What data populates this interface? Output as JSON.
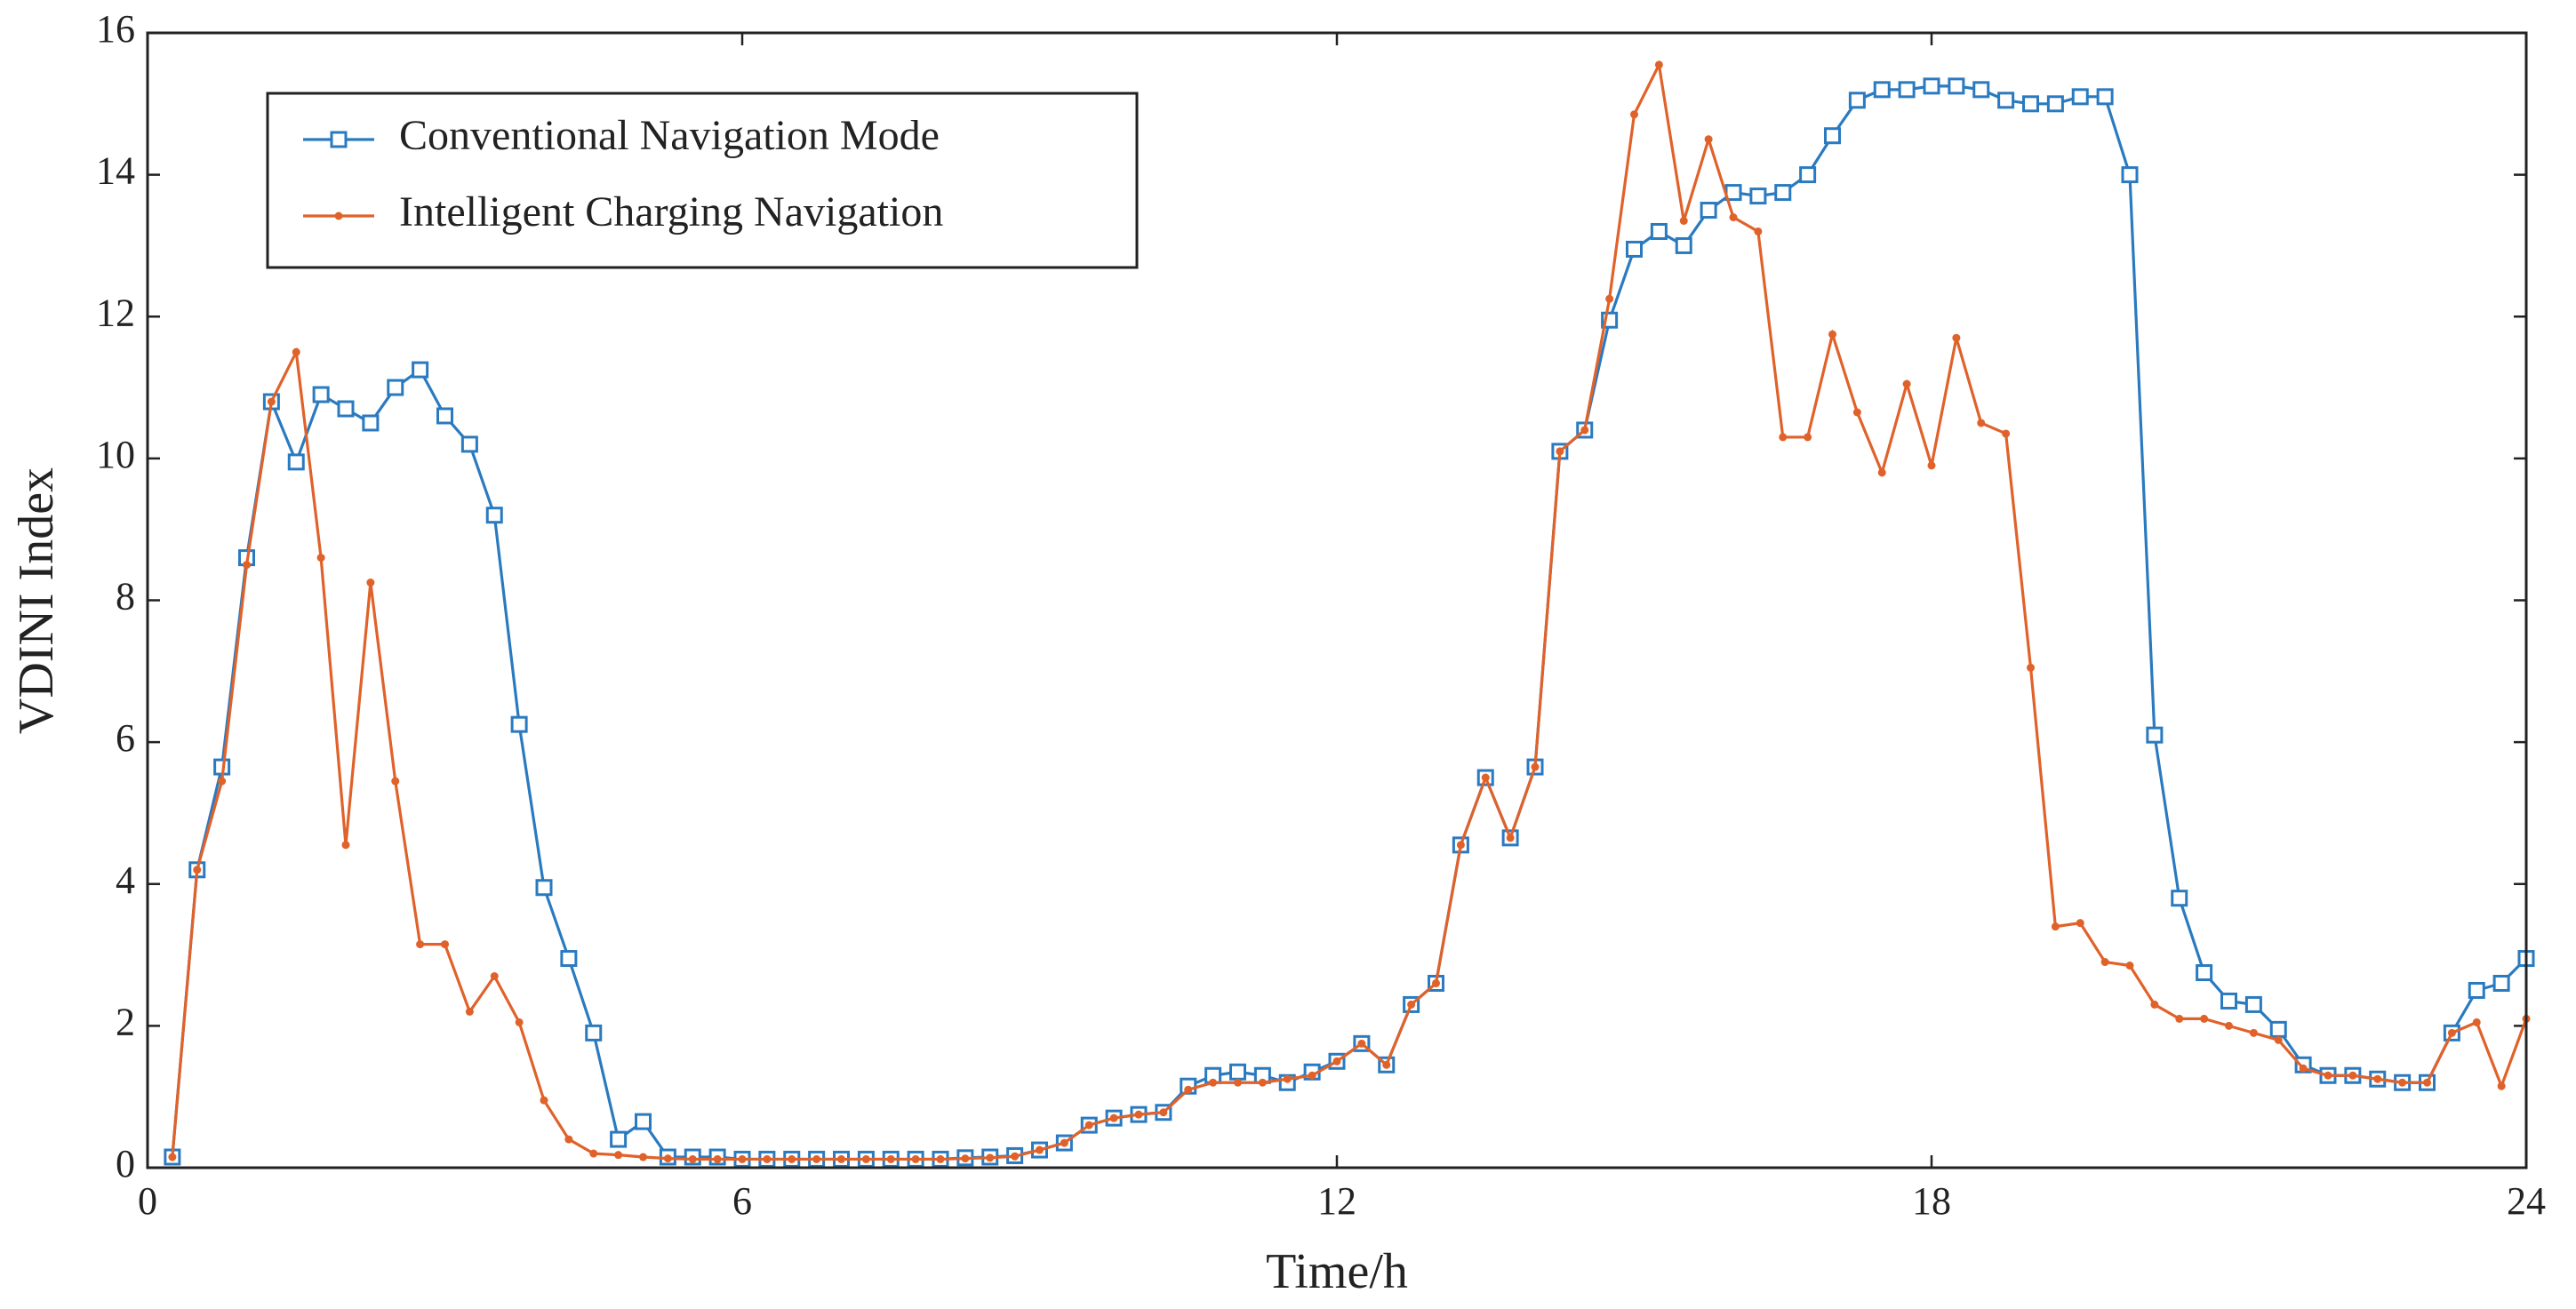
{
  "chart_data": {
    "type": "line",
    "xlabel": "Time/h",
    "ylabel": "VDINI Index",
    "x": [
      0.25,
      0.5,
      0.75,
      1,
      1.25,
      1.5,
      1.75,
      2,
      2.25,
      2.5,
      2.75,
      3,
      3.25,
      3.5,
      3.75,
      4,
      4.25,
      4.5,
      4.75,
      5,
      5.25,
      5.5,
      5.75,
      6,
      6.25,
      6.5,
      6.75,
      7,
      7.25,
      7.5,
      7.75,
      8,
      8.25,
      8.5,
      8.75,
      9,
      9.25,
      9.5,
      9.75,
      10,
      10.25,
      10.5,
      10.75,
      11,
      11.25,
      11.5,
      11.75,
      12,
      12.25,
      12.5,
      12.75,
      13,
      13.25,
      13.5,
      13.75,
      14,
      14.25,
      14.5,
      14.75,
      15,
      15.25,
      15.5,
      15.75,
      16,
      16.25,
      16.5,
      16.75,
      17,
      17.25,
      17.5,
      17.75,
      18,
      18.25,
      18.5,
      18.75,
      19,
      19.25,
      19.5,
      19.75,
      20,
      20.25,
      20.5,
      20.75,
      21,
      21.25,
      21.5,
      21.75,
      22,
      22.25,
      22.5,
      22.75,
      23,
      23.25,
      23.5,
      23.75,
      24
    ],
    "series": [
      {
        "name": "Conventional Navigation Mode",
        "color": "#2a7ac0",
        "marker": "square",
        "values": [
          0.15,
          4.2,
          5.65,
          8.6,
          10.8,
          9.95,
          10.9,
          10.7,
          10.5,
          11.0,
          11.25,
          10.6,
          10.2,
          9.2,
          6.25,
          3.95,
          2.95,
          1.9,
          0.4,
          0.65,
          0.15,
          0.15,
          0.15,
          0.12,
          0.12,
          0.12,
          0.12,
          0.12,
          0.12,
          0.12,
          0.12,
          0.12,
          0.14,
          0.15,
          0.17,
          0.25,
          0.35,
          0.6,
          0.7,
          0.75,
          0.78,
          1.15,
          1.3,
          1.35,
          1.3,
          1.2,
          1.35,
          1.5,
          1.75,
          1.45,
          2.3,
          2.6,
          4.55,
          5.5,
          4.65,
          5.65,
          10.1,
          10.4,
          11.95,
          12.95,
          13.2,
          13.0,
          13.5,
          13.75,
          13.7,
          13.75,
          14.0,
          14.55,
          15.05,
          15.2,
          15.2,
          15.25,
          15.25,
          15.2,
          15.05,
          15.0,
          15.0,
          15.1,
          15.1,
          14.0,
          6.1,
          3.8,
          2.75,
          2.35,
          2.3,
          1.95,
          1.45,
          1.3,
          1.3,
          1.25,
          1.2,
          1.2,
          1.9,
          2.5,
          2.6,
          2.95
        ]
      },
      {
        "name": "Intelligent Charging Navigation",
        "color": "#e0622a",
        "marker": "dot",
        "values": [
          0.15,
          4.2,
          5.45,
          8.5,
          10.8,
          11.5,
          8.6,
          4.55,
          8.25,
          5.45,
          3.15,
          3.15,
          2.2,
          2.7,
          2.05,
          0.95,
          0.4,
          0.2,
          0.18,
          0.15,
          0.13,
          0.12,
          0.12,
          0.12,
          0.12,
          0.12,
          0.12,
          0.12,
          0.12,
          0.12,
          0.12,
          0.12,
          0.13,
          0.14,
          0.16,
          0.25,
          0.35,
          0.6,
          0.7,
          0.75,
          0.78,
          1.1,
          1.2,
          1.2,
          1.2,
          1.25,
          1.3,
          1.5,
          1.75,
          1.45,
          2.3,
          2.6,
          4.55,
          5.5,
          4.65,
          5.65,
          10.1,
          10.4,
          12.25,
          14.85,
          15.55,
          13.35,
          14.5,
          13.4,
          13.2,
          10.3,
          10.3,
          11.75,
          10.65,
          9.8,
          11.05,
          9.9,
          11.7,
          10.5,
          10.35,
          7.05,
          3.4,
          3.45,
          2.9,
          2.85,
          2.3,
          2.1,
          2.1,
          2.0,
          1.9,
          1.8,
          1.4,
          1.3,
          1.3,
          1.25,
          1.2,
          1.2,
          1.9,
          2.05,
          1.15,
          2.1
        ]
      }
    ],
    "xlim": [
      0,
      24
    ],
    "xticks": [
      0,
      6,
      12,
      18,
      24
    ],
    "ylim": [
      0,
      16
    ],
    "yticks": [
      0,
      2,
      4,
      6,
      8,
      10,
      12,
      14,
      16
    ],
    "legend": "upper left",
    "grid": false
  }
}
